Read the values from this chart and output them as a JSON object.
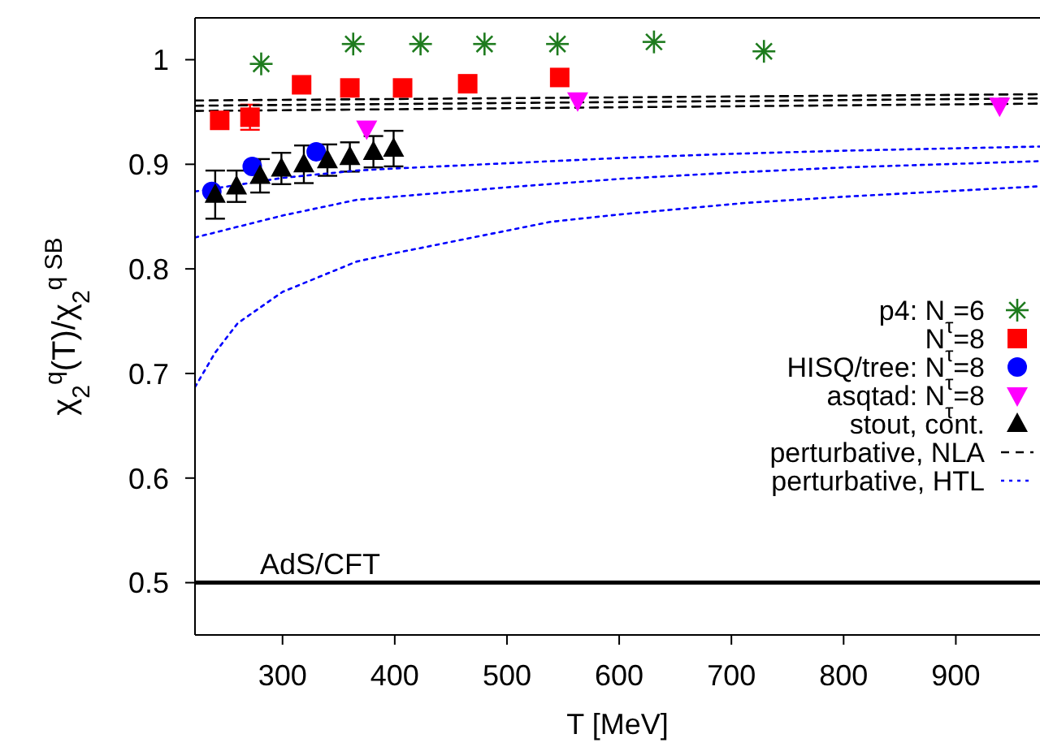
{
  "chart_data": {
    "type": "scatter",
    "xlabel": "T [MeV]",
    "ylabel": "χ$_{2}$$^{q}$(T)/χ$_{2}$$^{q SB}$",
    "xlim": [
      222,
      975
    ],
    "ylim": [
      0.45,
      1.04
    ],
    "xticks": [
      300,
      400,
      500,
      600,
      700,
      800,
      900
    ],
    "yticks": [
      0.5,
      0.6,
      0.7,
      0.8,
      0.9,
      1
    ],
    "legend": "right",
    "grid": false,
    "ref_lines": [
      {
        "axis": "y",
        "value": 0.5,
        "label": "AdS/CFT",
        "color": "#000000"
      }
    ],
    "series": [
      {
        "name": "p4: N$_{τ}$=6",
        "marker": "cross",
        "color": "#1e7b1e",
        "x": [
          281,
          363,
          423,
          480,
          545,
          631,
          729
        ],
        "values": [
          0.996,
          1.015,
          1.015,
          1.015,
          1.015,
          1.017,
          1.008
        ]
      },
      {
        "name": "N$_{τ}$=8",
        "marker": "square",
        "color": "#ff0000",
        "x": [
          244,
          271,
          317,
          360,
          407,
          465,
          547
        ],
        "values": [
          0.942,
          0.945,
          0.976,
          0.973,
          0.973,
          0.977,
          0.983
        ],
        "errors": [
          null,
          0.012,
          null,
          null,
          null,
          null,
          null
        ]
      },
      {
        "name": "HISQ/tree: N$_{τ}$=8",
        "marker": "circle",
        "color": "#0000ff",
        "x": [
          237,
          273,
          330
        ],
        "values": [
          0.874,
          0.898,
          0.912
        ]
      },
      {
        "name": "asqtad: N$_{τ}$=8",
        "marker": "triangle-down",
        "color": "#ff00ff",
        "x": [
          375,
          563,
          939
        ],
        "values": [
          0.934,
          0.961,
          0.956
        ]
      },
      {
        "name": "stout, cont.",
        "marker": "triangle",
        "color": "#000000",
        "x": [
          240,
          259,
          280,
          299,
          319,
          340,
          360,
          381,
          399
        ],
        "values": [
          0.871,
          0.879,
          0.889,
          0.896,
          0.9,
          0.904,
          0.907,
          0.912,
          0.915
        ],
        "errors": [
          0.023,
          0.015,
          0.016,
          0.015,
          0.018,
          0.015,
          0.014,
          0.015,
          0.017
        ]
      },
      {
        "name": "perturbative, NLA",
        "type": "line",
        "line_style": "dashed",
        "marker": "none",
        "color": "#000000",
        "x": [
          222,
          975
        ],
        "values": [
          0.961,
          0.967
        ]
      },
      {
        "type": "line",
        "line_style": "dashed",
        "marker": "none",
        "color": "#000000",
        "x": [
          222,
          975
        ],
        "values": [
          0.956,
          0.963
        ]
      },
      {
        "type": "line",
        "line_style": "dashed",
        "marker": "none",
        "color": "#000000",
        "x": [
          222,
          975
        ],
        "values": [
          0.951,
          0.958
        ]
      },
      {
        "name": "perturbative, HTL",
        "type": "line",
        "line_style": "dotted",
        "marker": "none",
        "color": "#0000ff",
        "x": [
          222,
          300,
          366,
          400,
          500,
          600,
          700,
          800,
          975
        ],
        "values": [
          0.874,
          0.887,
          0.894,
          0.896,
          0.901,
          0.906,
          0.91,
          0.913,
          0.917
        ]
      },
      {
        "type": "line",
        "line_style": "dotted",
        "marker": "none",
        "color": "#0000ff",
        "x": [
          222,
          300,
          366,
          400,
          500,
          600,
          700,
          800,
          975
        ],
        "values": [
          0.83,
          0.851,
          0.866,
          0.869,
          0.878,
          0.886,
          0.892,
          0.897,
          0.903
        ]
      },
      {
        "type": "line",
        "line_style": "dotted",
        "marker": "none",
        "color": "#0000ff",
        "x": [
          222,
          240,
          260,
          300,
          366,
          400,
          539,
          600,
          712,
          800,
          975
        ],
        "values": [
          0.687,
          0.72,
          0.748,
          0.778,
          0.807,
          0.815,
          0.845,
          0.852,
          0.863,
          0.869,
          0.879
        ]
      }
    ]
  }
}
